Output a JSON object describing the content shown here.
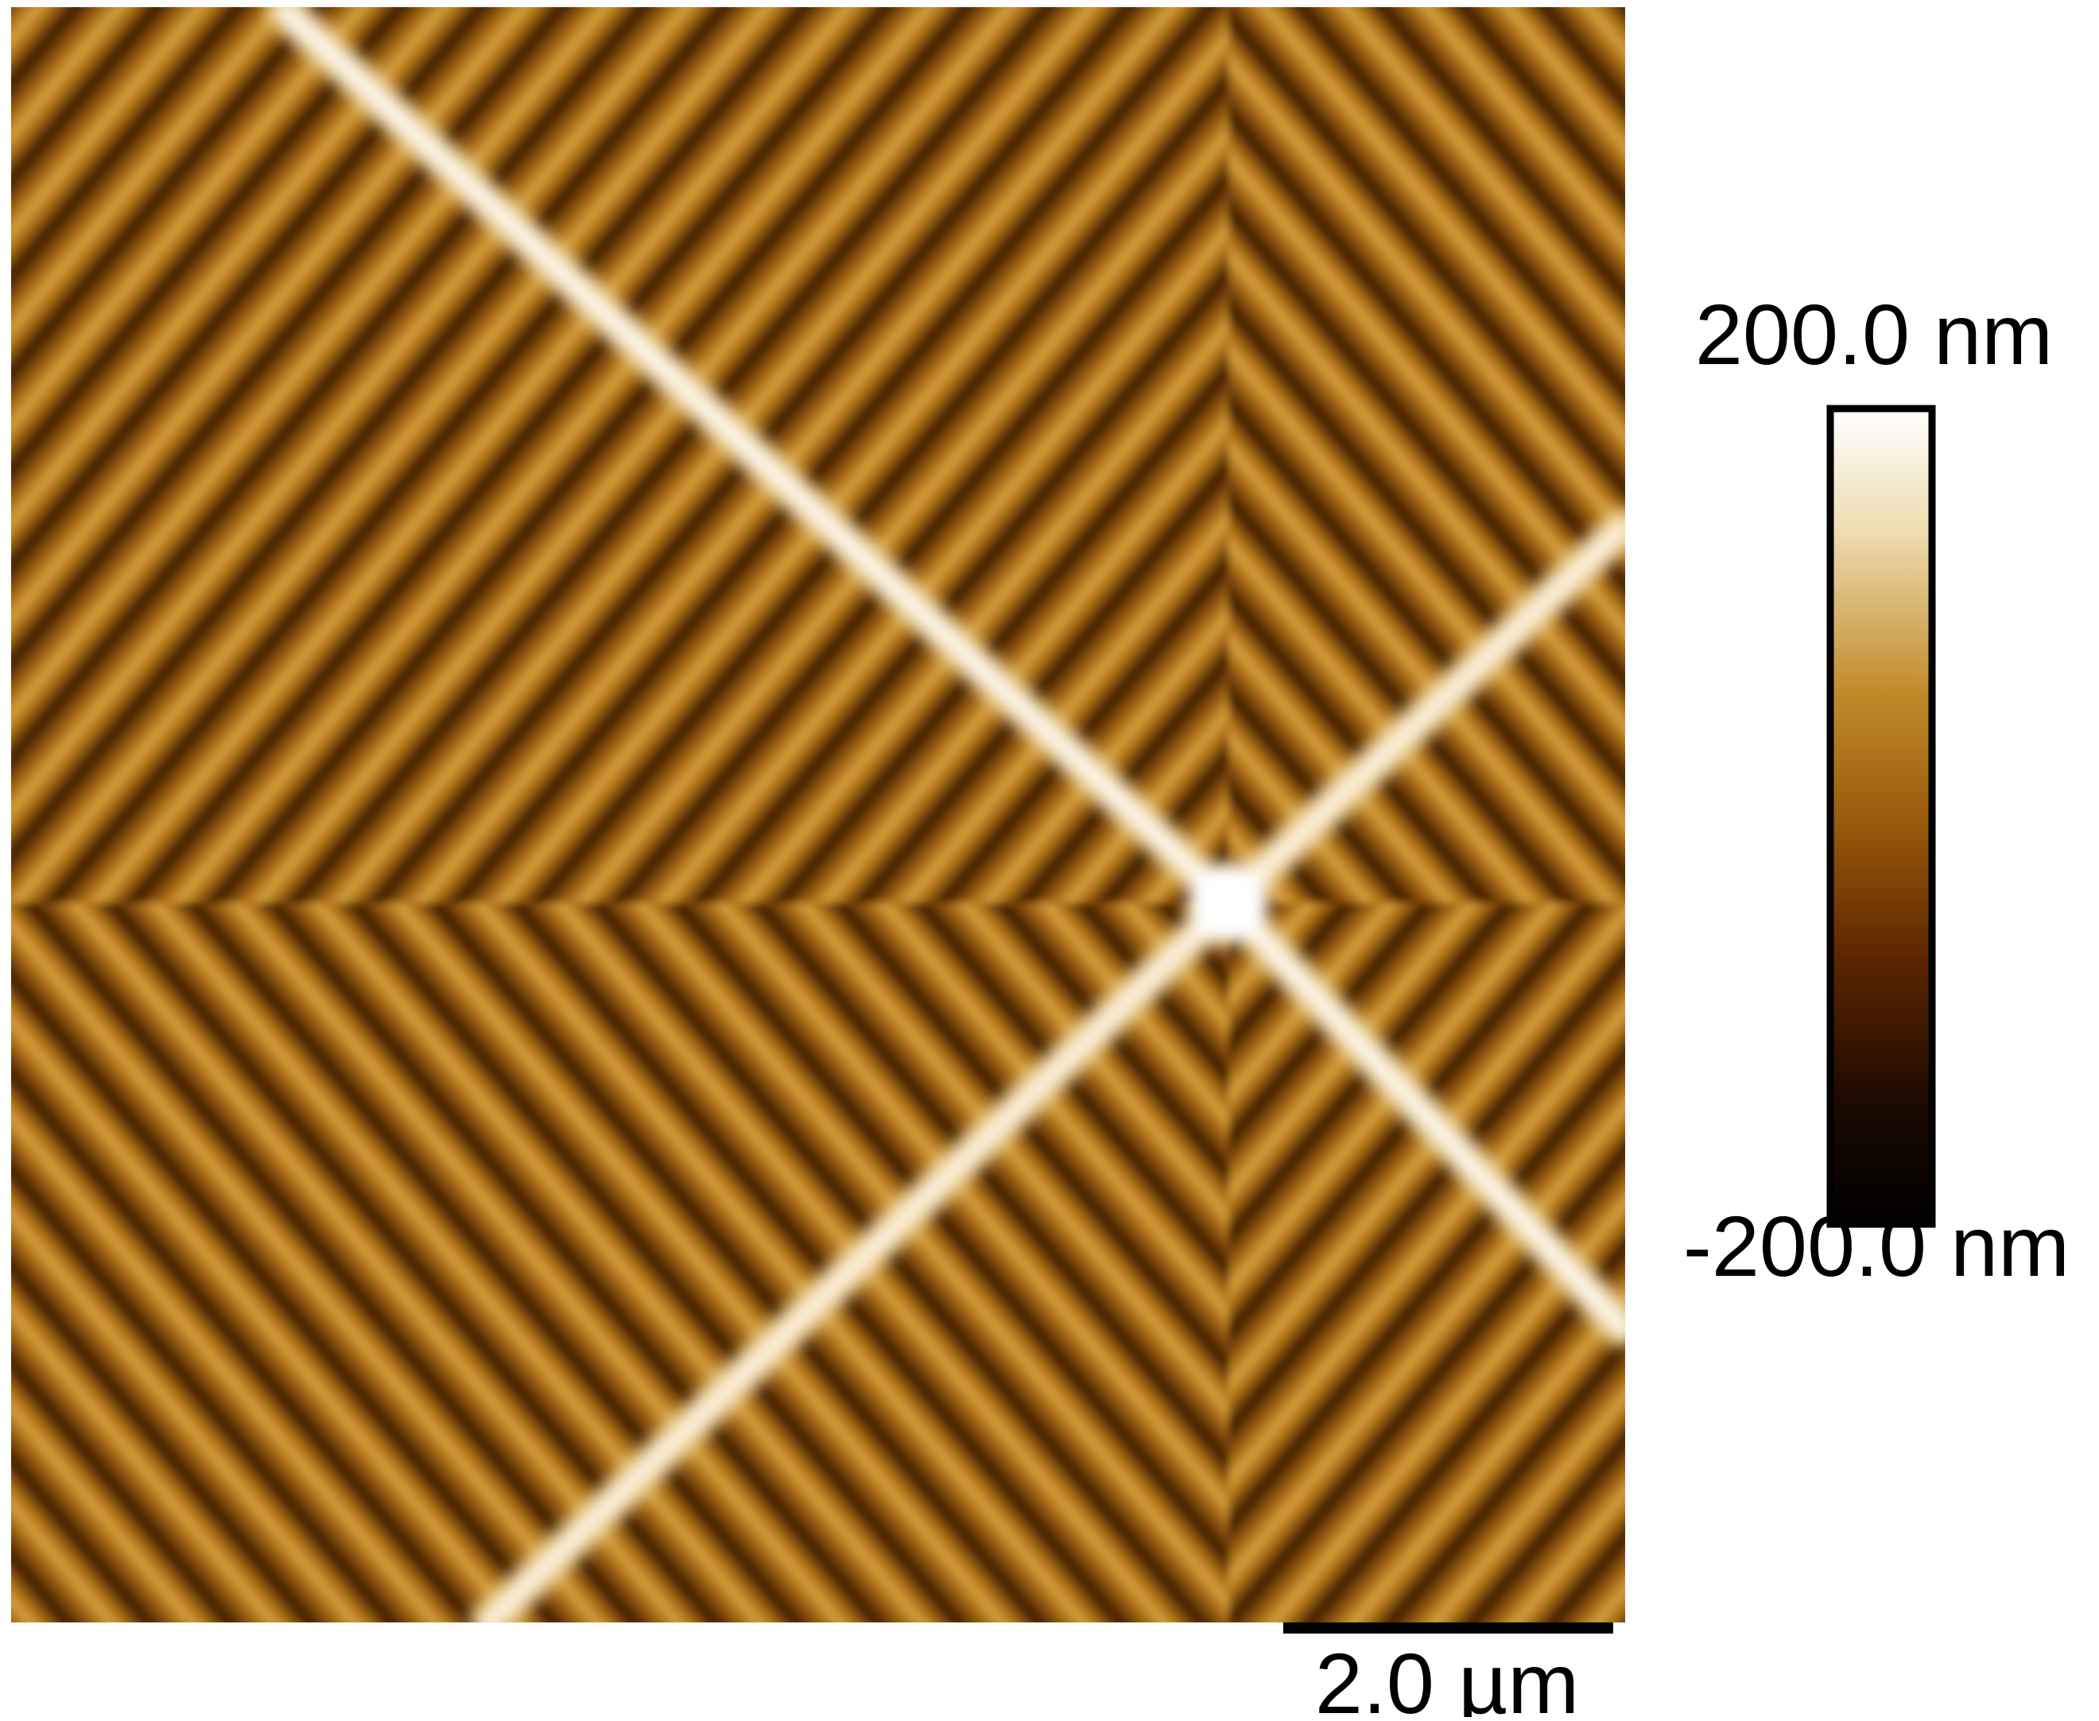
{
  "colorbar": {
    "max_label": "200.0 nm",
    "min_label": "-200.0 nm"
  },
  "scale_bar": {
    "label": "2.0 µm"
  }
}
